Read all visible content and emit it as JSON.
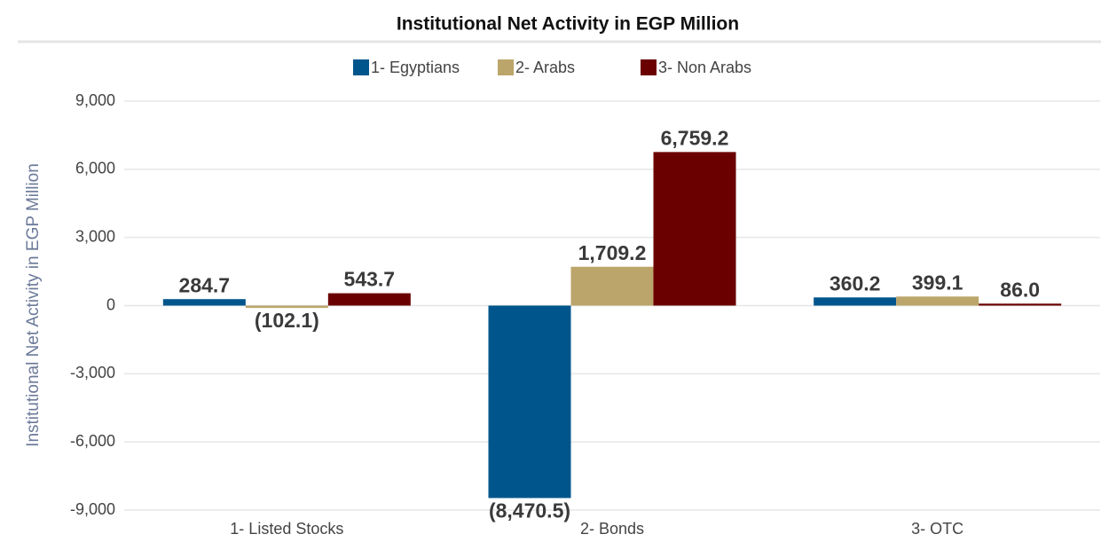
{
  "chart_data": {
    "type": "bar",
    "title": "Institutional Net Activity in EGP Million",
    "y_label": "Institutional Net Activity in EGP Million",
    "categories": [
      "1- Listed Stocks",
      "2- Bonds",
      "3- OTC"
    ],
    "series": [
      {
        "name": "1- Egyptians",
        "color": "#00558c",
        "values": [
          284.7,
          -8470.5,
          360.2
        ],
        "value_labels": [
          "284.7",
          "(8,470.5)",
          "360.2"
        ]
      },
      {
        "name": "2- Arabs",
        "color": "#bba56a",
        "values": [
          -102.1,
          1709.2,
          399.1
        ],
        "value_labels": [
          "(102.1)",
          "1,709.2",
          "399.1"
        ]
      },
      {
        "name": "3- Non Arabs",
        "color": "#6b0000",
        "values": [
          543.7,
          6759.2,
          86.0
        ],
        "value_labels": [
          "543.7",
          "6,759.2",
          "86.0"
        ]
      }
    ],
    "ylim": [
      -9000,
      9000
    ],
    "yticks": [
      {
        "value": -9000,
        "label": "-9,000"
      },
      {
        "value": -6000,
        "label": "-6,000"
      },
      {
        "value": -3000,
        "label": "-3,000"
      },
      0,
      {
        "value": 3000,
        "label": "3,000"
      },
      {
        "value": 6000,
        "label": "6,000"
      },
      {
        "value": 9000,
        "label": "9,000"
      }
    ],
    "grid": true
  }
}
